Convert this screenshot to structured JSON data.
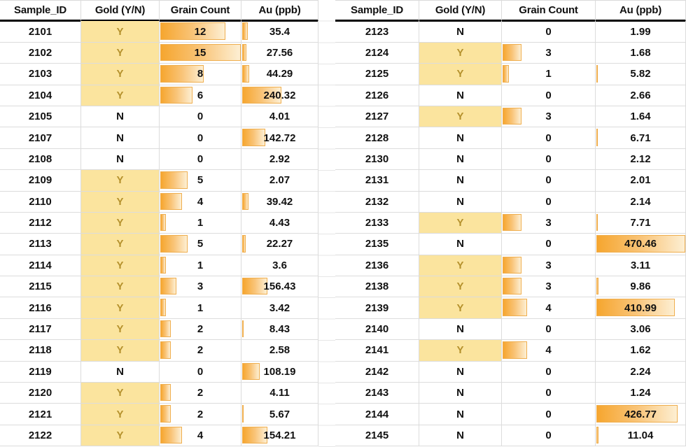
{
  "columns": [
    "Sample_ID",
    "Gold (Y/N)",
    "Grain Count",
    "Au (ppb)"
  ],
  "scales": {
    "grain_count_max": 15,
    "au_ppb_max": 470.46
  },
  "colors": {
    "gold_cell_fill": "#fbe49e",
    "gold_cell_text": "#b5912c",
    "data_bar_solid": "#f6a62f",
    "data_bar_fade": "#fdefd3",
    "data_bar_border": "#efae4e",
    "gridline": "#dcdcdc",
    "header_rule": "#000000"
  },
  "tables": [
    {
      "name": "left",
      "rows": [
        {
          "sample_id": "2101",
          "gold": "Y",
          "grain_count": 12,
          "au_ppb": "35.4"
        },
        {
          "sample_id": "2102",
          "gold": "Y",
          "grain_count": 15,
          "au_ppb": "27.56"
        },
        {
          "sample_id": "2103",
          "gold": "Y",
          "grain_count": 8,
          "au_ppb": "44.29"
        },
        {
          "sample_id": "2104",
          "gold": "Y",
          "grain_count": 6,
          "au_ppb": "240.32"
        },
        {
          "sample_id": "2105",
          "gold": "N",
          "grain_count": 0,
          "au_ppb": "4.01"
        },
        {
          "sample_id": "2107",
          "gold": "N",
          "grain_count": 0,
          "au_ppb": "142.72"
        },
        {
          "sample_id": "2108",
          "gold": "N",
          "grain_count": 0,
          "au_ppb": "2.92"
        },
        {
          "sample_id": "2109",
          "gold": "Y",
          "grain_count": 5,
          "au_ppb": "2.07"
        },
        {
          "sample_id": "2110",
          "gold": "Y",
          "grain_count": 4,
          "au_ppb": "39.42"
        },
        {
          "sample_id": "2112",
          "gold": "Y",
          "grain_count": 1,
          "au_ppb": "4.43"
        },
        {
          "sample_id": "2113",
          "gold": "Y",
          "grain_count": 5,
          "au_ppb": "22.27"
        },
        {
          "sample_id": "2114",
          "gold": "Y",
          "grain_count": 1,
          "au_ppb": "3.6"
        },
        {
          "sample_id": "2115",
          "gold": "Y",
          "grain_count": 3,
          "au_ppb": "156.43"
        },
        {
          "sample_id": "2116",
          "gold": "Y",
          "grain_count": 1,
          "au_ppb": "3.42"
        },
        {
          "sample_id": "2117",
          "gold": "Y",
          "grain_count": 2,
          "au_ppb": "8.43"
        },
        {
          "sample_id": "2118",
          "gold": "Y",
          "grain_count": 2,
          "au_ppb": "2.58"
        },
        {
          "sample_id": "2119",
          "gold": "N",
          "grain_count": 0,
          "au_ppb": "108.19"
        },
        {
          "sample_id": "2120",
          "gold": "Y",
          "grain_count": 2,
          "au_ppb": "4.11"
        },
        {
          "sample_id": "2121",
          "gold": "Y",
          "grain_count": 2,
          "au_ppb": "5.67"
        },
        {
          "sample_id": "2122",
          "gold": "Y",
          "grain_count": 4,
          "au_ppb": "154.21"
        }
      ]
    },
    {
      "name": "right",
      "rows": [
        {
          "sample_id": "2123",
          "gold": "N",
          "grain_count": 0,
          "au_ppb": "1.99"
        },
        {
          "sample_id": "2124",
          "gold": "Y",
          "grain_count": 3,
          "au_ppb": "1.68"
        },
        {
          "sample_id": "2125",
          "gold": "Y",
          "grain_count": 1,
          "au_ppb": "5.82"
        },
        {
          "sample_id": "2126",
          "gold": "N",
          "grain_count": 0,
          "au_ppb": "2.66"
        },
        {
          "sample_id": "2127",
          "gold": "Y",
          "grain_count": 3,
          "au_ppb": "1.64"
        },
        {
          "sample_id": "2128",
          "gold": "N",
          "grain_count": 0,
          "au_ppb": "6.71"
        },
        {
          "sample_id": "2130",
          "gold": "N",
          "grain_count": 0,
          "au_ppb": "2.12"
        },
        {
          "sample_id": "2131",
          "gold": "N",
          "grain_count": 0,
          "au_ppb": "2.01"
        },
        {
          "sample_id": "2132",
          "gold": "N",
          "grain_count": 0,
          "au_ppb": "2.14"
        },
        {
          "sample_id": "2133",
          "gold": "Y",
          "grain_count": 3,
          "au_ppb": "7.71"
        },
        {
          "sample_id": "2135",
          "gold": "N",
          "grain_count": 0,
          "au_ppb": "470.46"
        },
        {
          "sample_id": "2136",
          "gold": "Y",
          "grain_count": 3,
          "au_ppb": "3.11"
        },
        {
          "sample_id": "2138",
          "gold": "Y",
          "grain_count": 3,
          "au_ppb": "9.86"
        },
        {
          "sample_id": "2139",
          "gold": "Y",
          "grain_count": 4,
          "au_ppb": "410.99"
        },
        {
          "sample_id": "2140",
          "gold": "N",
          "grain_count": 0,
          "au_ppb": "3.06"
        },
        {
          "sample_id": "2141",
          "gold": "Y",
          "grain_count": 4,
          "au_ppb": "1.62"
        },
        {
          "sample_id": "2142",
          "gold": "N",
          "grain_count": 0,
          "au_ppb": "2.24"
        },
        {
          "sample_id": "2143",
          "gold": "N",
          "grain_count": 0,
          "au_ppb": "1.24"
        },
        {
          "sample_id": "2144",
          "gold": "N",
          "grain_count": 0,
          "au_ppb": "426.77"
        },
        {
          "sample_id": "2145",
          "gold": "N",
          "grain_count": 0,
          "au_ppb": "11.04"
        }
      ]
    }
  ]
}
